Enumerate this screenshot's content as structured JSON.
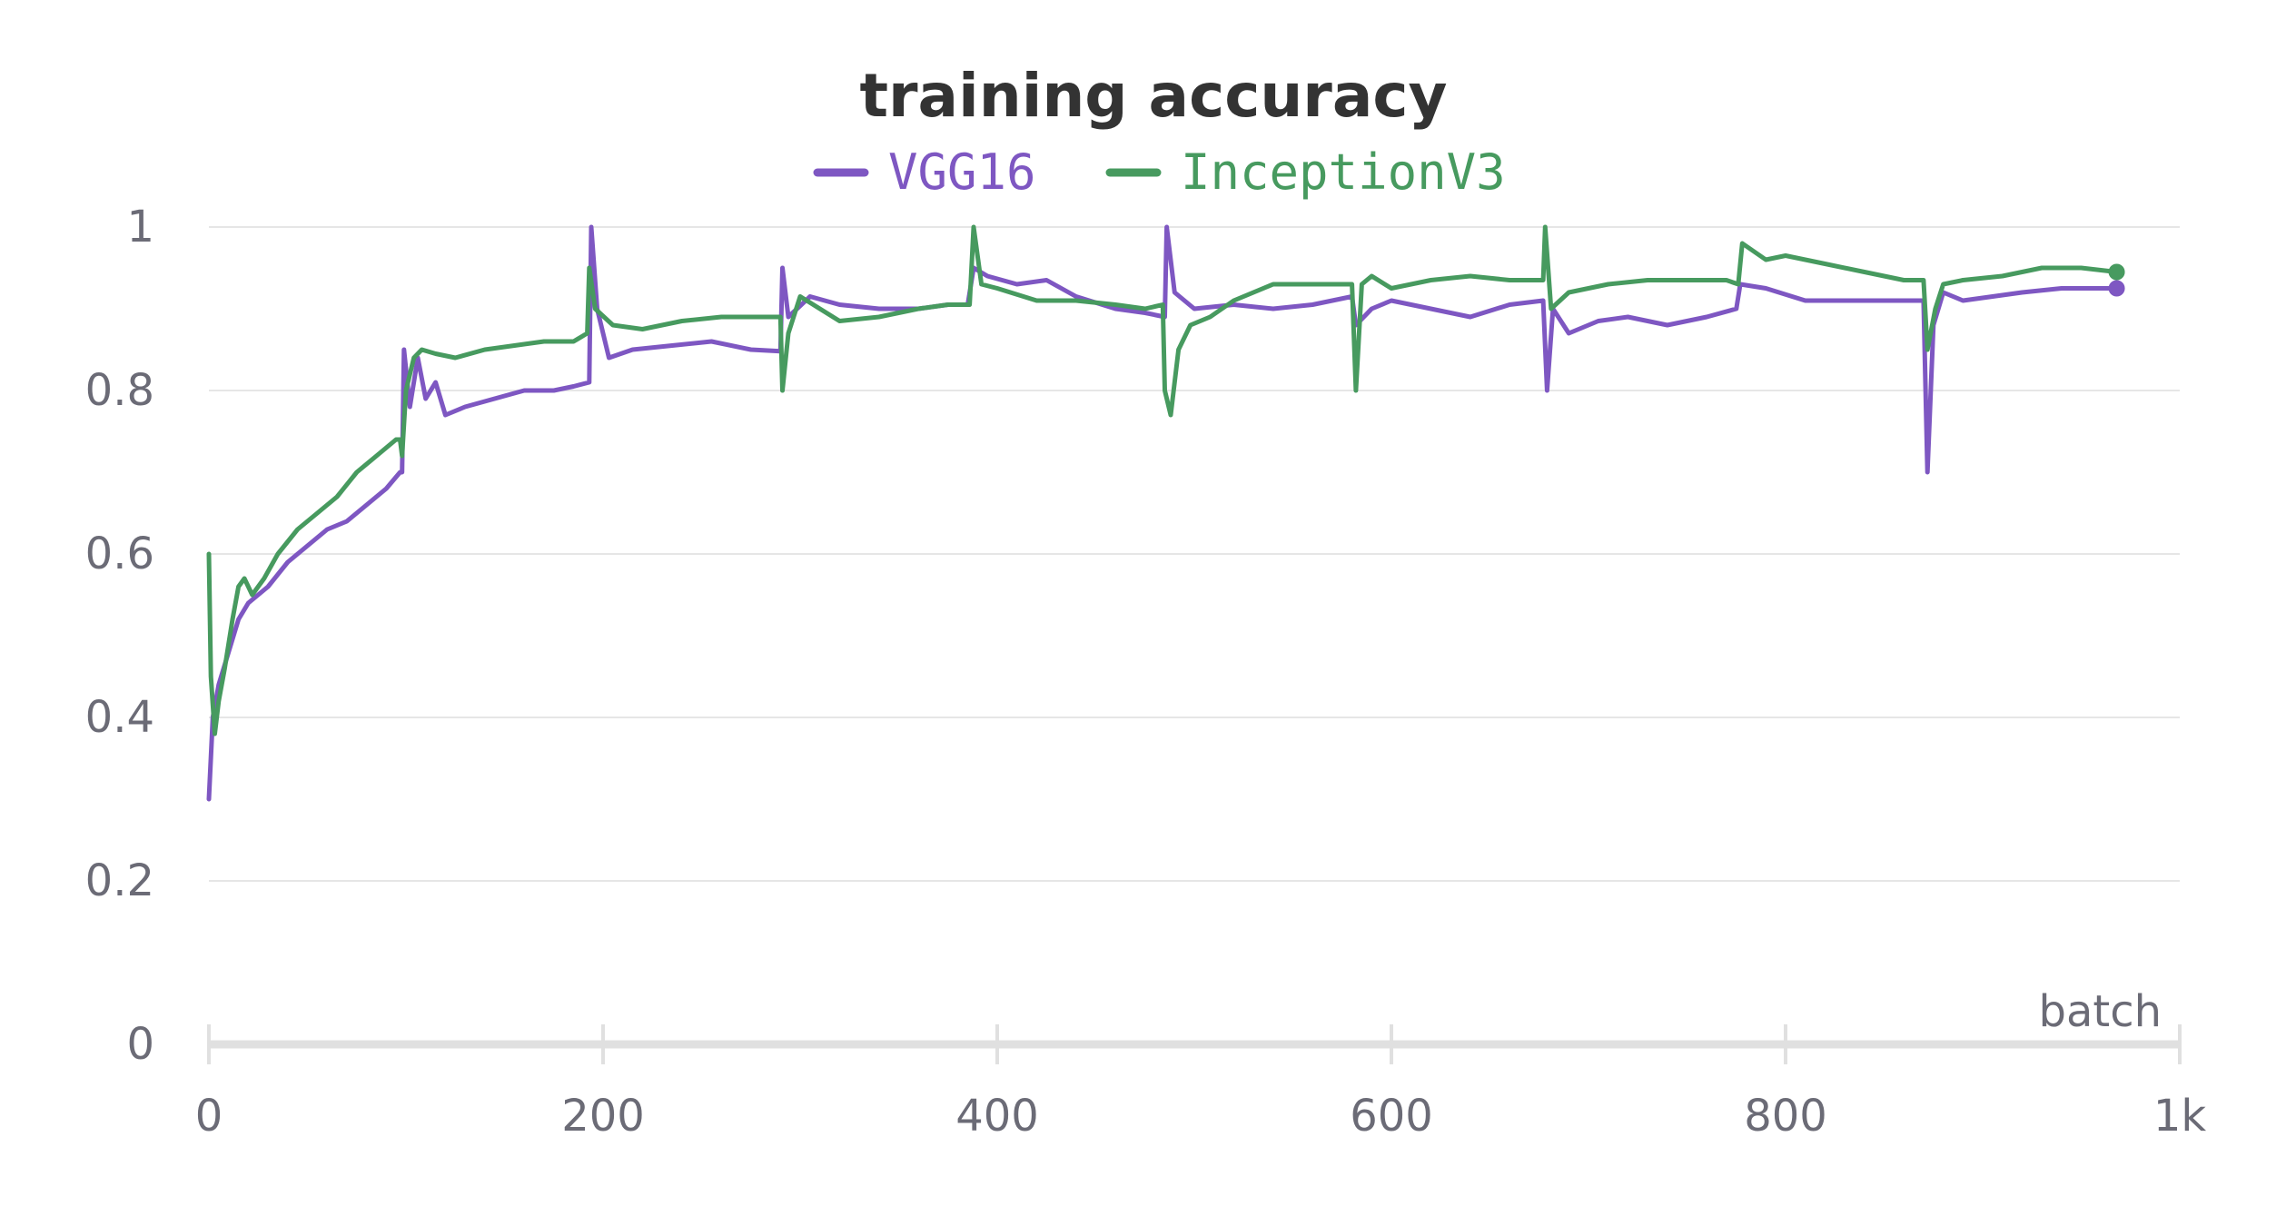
{
  "chart_data": {
    "type": "line",
    "title": "training accuracy",
    "xlabel": "batch",
    "ylabel": "",
    "xlim": [
      0,
      1000
    ],
    "ylim": [
      0,
      1
    ],
    "x_ticks": [
      {
        "value": 0,
        "label": "0"
      },
      {
        "value": 200,
        "label": "200"
      },
      {
        "value": 400,
        "label": "400"
      },
      {
        "value": 600,
        "label": "600"
      },
      {
        "value": 800,
        "label": "800"
      },
      {
        "value": 1000,
        "label": "1k"
      }
    ],
    "y_ticks": [
      {
        "value": 0,
        "label": "0"
      },
      {
        "value": 0.2,
        "label": "0.2"
      },
      {
        "value": 0.4,
        "label": "0.4"
      },
      {
        "value": 0.6,
        "label": "0.6"
      },
      {
        "value": 0.8,
        "label": "0.8"
      },
      {
        "value": 1,
        "label": "1"
      }
    ],
    "grid": true,
    "legend_position": "top",
    "series": [
      {
        "name": "VGG16",
        "color": "#7e57c2",
        "points": [
          [
            0,
            0.3
          ],
          [
            2,
            0.4
          ],
          [
            5,
            0.44
          ],
          [
            10,
            0.48
          ],
          [
            15,
            0.52
          ],
          [
            20,
            0.54
          ],
          [
            30,
            0.56
          ],
          [
            40,
            0.59
          ],
          [
            50,
            0.61
          ],
          [
            60,
            0.63
          ],
          [
            70,
            0.64
          ],
          [
            80,
            0.66
          ],
          [
            90,
            0.68
          ],
          [
            97,
            0.7
          ],
          [
            98,
            0.7
          ],
          [
            99,
            0.85
          ],
          [
            102,
            0.78
          ],
          [
            106,
            0.84
          ],
          [
            110,
            0.79
          ],
          [
            115,
            0.81
          ],
          [
            120,
            0.77
          ],
          [
            130,
            0.78
          ],
          [
            145,
            0.79
          ],
          [
            160,
            0.8
          ],
          [
            175,
            0.8
          ],
          [
            185,
            0.805
          ],
          [
            193,
            0.81
          ],
          [
            194,
            1.0
          ],
          [
            197,
            0.9
          ],
          [
            203,
            0.84
          ],
          [
            215,
            0.85
          ],
          [
            235,
            0.855
          ],
          [
            255,
            0.86
          ],
          [
            275,
            0.85
          ],
          [
            290,
            0.848
          ],
          [
            291,
            0.95
          ],
          [
            294,
            0.89
          ],
          [
            305,
            0.915
          ],
          [
            320,
            0.905
          ],
          [
            340,
            0.9
          ],
          [
            360,
            0.9
          ],
          [
            375,
            0.905
          ],
          [
            385,
            0.905
          ],
          [
            388,
            0.95
          ],
          [
            395,
            0.94
          ],
          [
            410,
            0.93
          ],
          [
            425,
            0.935
          ],
          [
            440,
            0.915
          ],
          [
            460,
            0.9
          ],
          [
            475,
            0.895
          ],
          [
            485,
            0.89
          ],
          [
            486,
            1.0
          ],
          [
            490,
            0.92
          ],
          [
            500,
            0.9
          ],
          [
            520,
            0.905
          ],
          [
            540,
            0.9
          ],
          [
            560,
            0.905
          ],
          [
            580,
            0.915
          ],
          [
            582,
            0.88
          ],
          [
            590,
            0.9
          ],
          [
            600,
            0.91
          ],
          [
            620,
            0.9
          ],
          [
            640,
            0.89
          ],
          [
            660,
            0.905
          ],
          [
            677,
            0.91
          ],
          [
            679,
            0.8
          ],
          [
            682,
            0.9
          ],
          [
            690,
            0.87
          ],
          [
            705,
            0.885
          ],
          [
            720,
            0.89
          ],
          [
            740,
            0.88
          ],
          [
            760,
            0.89
          ],
          [
            775,
            0.9
          ],
          [
            777,
            0.93
          ],
          [
            790,
            0.925
          ],
          [
            810,
            0.91
          ],
          [
            830,
            0.91
          ],
          [
            850,
            0.91
          ],
          [
            870,
            0.91
          ],
          [
            872,
            0.7
          ],
          [
            875,
            0.88
          ],
          [
            880,
            0.92
          ],
          [
            890,
            0.91
          ],
          [
            905,
            0.915
          ],
          [
            920,
            0.92
          ],
          [
            940,
            0.925
          ],
          [
            960,
            0.925
          ],
          [
            968,
            0.925
          ]
        ]
      },
      {
        "name": "InceptionV3",
        "color": "#479a5f",
        "points": [
          [
            0,
            0.6
          ],
          [
            1,
            0.45
          ],
          [
            3,
            0.38
          ],
          [
            5,
            0.42
          ],
          [
            8,
            0.46
          ],
          [
            12,
            0.52
          ],
          [
            15,
            0.56
          ],
          [
            18,
            0.57
          ],
          [
            22,
            0.55
          ],
          [
            28,
            0.57
          ],
          [
            35,
            0.6
          ],
          [
            45,
            0.63
          ],
          [
            55,
            0.65
          ],
          [
            65,
            0.67
          ],
          [
            75,
            0.7
          ],
          [
            85,
            0.72
          ],
          [
            95,
            0.74
          ],
          [
            97,
            0.74
          ],
          [
            98,
            0.72
          ],
          [
            100,
            0.8
          ],
          [
            104,
            0.84
          ],
          [
            108,
            0.85
          ],
          [
            115,
            0.845
          ],
          [
            125,
            0.84
          ],
          [
            140,
            0.85
          ],
          [
            155,
            0.855
          ],
          [
            170,
            0.86
          ],
          [
            185,
            0.86
          ],
          [
            192,
            0.87
          ],
          [
            193,
            0.95
          ],
          [
            196,
            0.9
          ],
          [
            205,
            0.88
          ],
          [
            220,
            0.875
          ],
          [
            240,
            0.885
          ],
          [
            260,
            0.89
          ],
          [
            280,
            0.89
          ],
          [
            290,
            0.89
          ],
          [
            291,
            0.8
          ],
          [
            294,
            0.87
          ],
          [
            300,
            0.915
          ],
          [
            310,
            0.9
          ],
          [
            320,
            0.885
          ],
          [
            340,
            0.89
          ],
          [
            360,
            0.9
          ],
          [
            375,
            0.905
          ],
          [
            386,
            0.905
          ],
          [
            388,
            1.0
          ],
          [
            392,
            0.93
          ],
          [
            400,
            0.925
          ],
          [
            420,
            0.91
          ],
          [
            440,
            0.91
          ],
          [
            460,
            0.905
          ],
          [
            475,
            0.9
          ],
          [
            484,
            0.905
          ],
          [
            485,
            0.8
          ],
          [
            488,
            0.77
          ],
          [
            492,
            0.85
          ],
          [
            498,
            0.88
          ],
          [
            508,
            0.89
          ],
          [
            520,
            0.91
          ],
          [
            540,
            0.93
          ],
          [
            560,
            0.93
          ],
          [
            580,
            0.93
          ],
          [
            582,
            0.8
          ],
          [
            585,
            0.93
          ],
          [
            590,
            0.94
          ],
          [
            600,
            0.925
          ],
          [
            620,
            0.935
          ],
          [
            640,
            0.94
          ],
          [
            660,
            0.935
          ],
          [
            677,
            0.935
          ],
          [
            678,
            1.0
          ],
          [
            681,
            0.9
          ],
          [
            690,
            0.92
          ],
          [
            710,
            0.93
          ],
          [
            730,
            0.935
          ],
          [
            750,
            0.935
          ],
          [
            770,
            0.935
          ],
          [
            776,
            0.93
          ],
          [
            778,
            0.98
          ],
          [
            790,
            0.96
          ],
          [
            800,
            0.965
          ],
          [
            820,
            0.955
          ],
          [
            840,
            0.945
          ],
          [
            860,
            0.935
          ],
          [
            870,
            0.935
          ],
          [
            872,
            0.85
          ],
          [
            876,
            0.9
          ],
          [
            880,
            0.93
          ],
          [
            890,
            0.935
          ],
          [
            910,
            0.94
          ],
          [
            930,
            0.95
          ],
          [
            950,
            0.95
          ],
          [
            968,
            0.945
          ]
        ]
      }
    ]
  }
}
